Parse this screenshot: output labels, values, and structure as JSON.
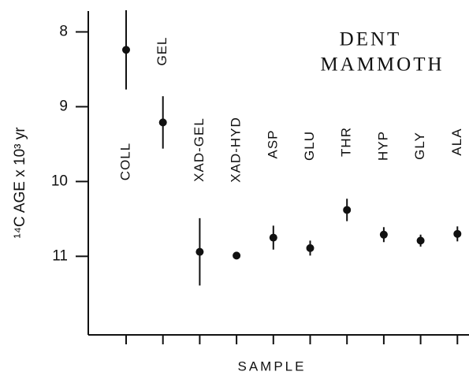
{
  "chart_data": {
    "type": "errorbar",
    "title": [
      "DENT",
      "MAMMOTH"
    ],
    "x_label": "SAMPLE",
    "y_label": "¹⁴C AGE x 10³ yr",
    "categories": [
      "COLL",
      "GEL",
      "XAD-GEL",
      "XAD-HYD",
      "ASP",
      "GLU",
      "THR",
      "HYP",
      "GLY",
      "ALA"
    ],
    "series": [
      {
        "color": "#111111",
        "values": [
          8.24,
          9.21,
          10.94,
          10.99,
          10.75,
          10.89,
          10.38,
          10.71,
          10.79,
          10.7
        ],
        "errors": [
          0.53,
          0.35,
          0.45,
          0.04,
          0.16,
          0.1,
          0.15,
          0.1,
          0.08,
          0.1
        ]
      }
    ],
    "ylim": [
      12.05,
      7.7
    ],
    "y_inverted": true,
    "yticks": [
      8,
      9,
      10,
      11
    ]
  }
}
